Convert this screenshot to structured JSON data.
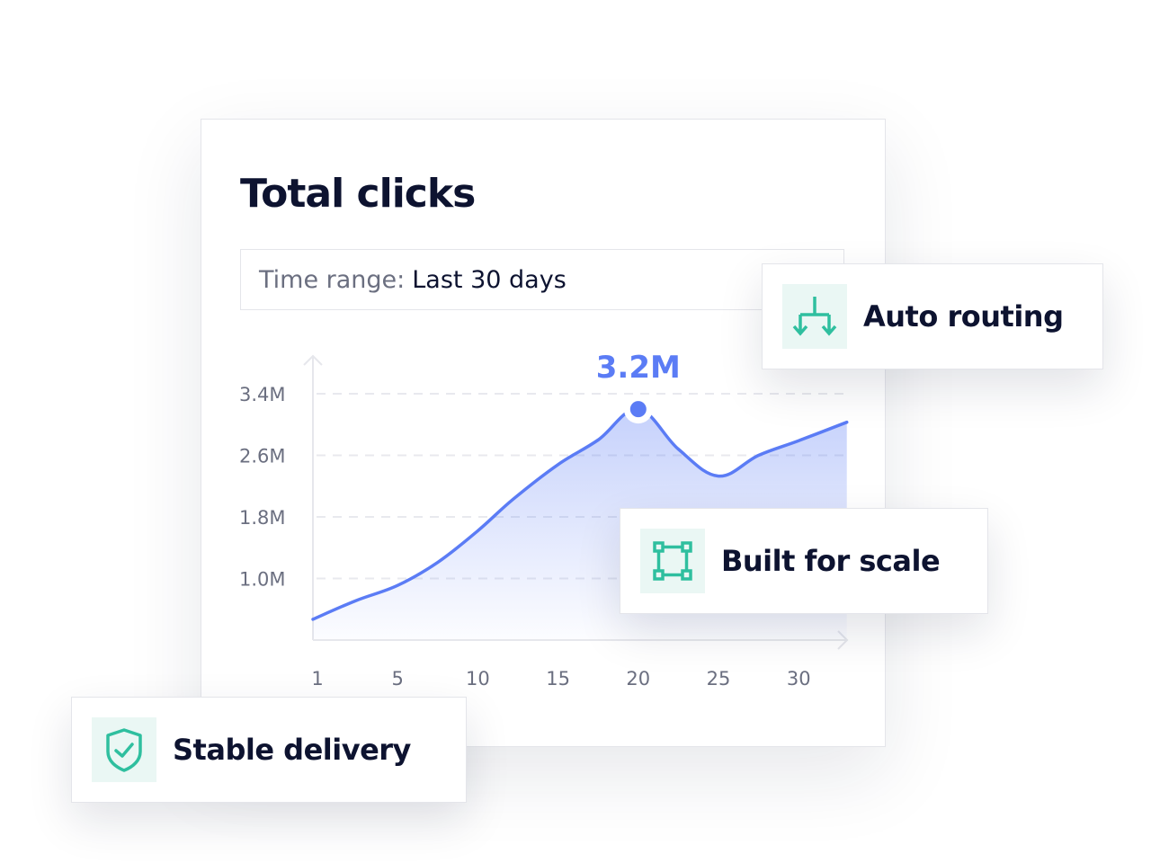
{
  "card": {
    "title": "Total clicks",
    "time_range_label": "Time range:",
    "time_range_value": "Last 30 days"
  },
  "badges": [
    {
      "label": "Auto routing",
      "icon": "split-arrows-down-icon"
    },
    {
      "label": "Stable delivery",
      "icon": "shield-check-icon"
    },
    {
      "label": "Built for scale",
      "icon": "bounding-box-icon"
    }
  ],
  "colors": {
    "line": "#5b7cf5",
    "accent_icon": "#2fbf9f",
    "icon_bg": "#eaf7f4",
    "text": "#0d1330"
  },
  "chart_data": {
    "type": "area",
    "title": "Total clicks",
    "x_ticks": [
      "1",
      "5",
      "10",
      "15",
      "20",
      "25",
      "30"
    ],
    "y_ticks": [
      "1.0M",
      "1.8M",
      "2.6M",
      "3.4M"
    ],
    "y_tick_values": [
      1.0,
      1.8,
      2.6,
      3.4
    ],
    "ylim": [
      0.2,
      3.4
    ],
    "grid": "horizontal dashed",
    "points": [
      {
        "x": 1,
        "y": 0.47
      },
      {
        "x": 2.9,
        "y": 0.71
      },
      {
        "x": 5,
        "y": 0.91
      },
      {
        "x": 7.5,
        "y": 1.21
      },
      {
        "x": 10,
        "y": 1.62
      },
      {
        "x": 12.2,
        "y": 2.03
      },
      {
        "x": 15,
        "y": 2.48
      },
      {
        "x": 17.5,
        "y": 2.8
      },
      {
        "x": 20,
        "y": 3.2
      },
      {
        "x": 22.5,
        "y": 2.68
      },
      {
        "x": 25,
        "y": 2.33
      },
      {
        "x": 27.5,
        "y": 2.6
      },
      {
        "x": 30,
        "y": 2.79
      },
      {
        "x": 33,
        "y": 3.03
      }
    ],
    "highlight": {
      "x": 20,
      "y": 3.2,
      "label": "3.2M"
    }
  }
}
